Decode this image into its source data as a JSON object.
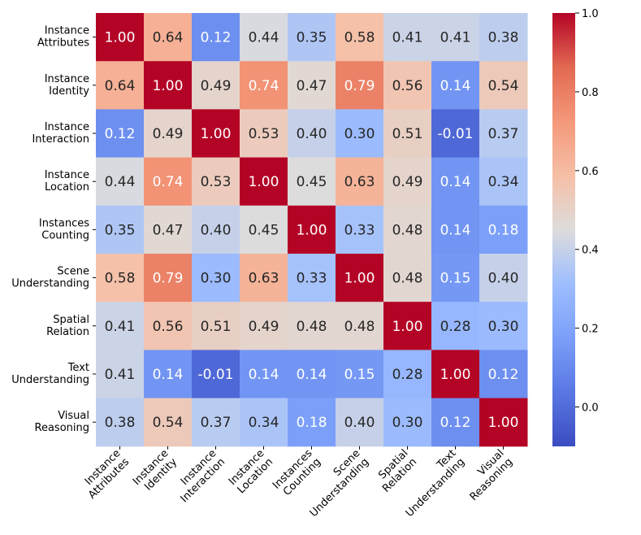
{
  "chart_data": {
    "type": "heatmap",
    "title": "",
    "xlabel": "",
    "ylabel": "",
    "row_labels": [
      [
        "Instance",
        "Attributes"
      ],
      [
        "Instance",
        "Identity"
      ],
      [
        "Instance",
        "Interaction"
      ],
      [
        "Instance",
        "Location"
      ],
      [
        "Instances",
        "Counting"
      ],
      [
        "Scene",
        "Understanding"
      ],
      [
        "Spatial",
        "Relation"
      ],
      [
        "Text",
        "Understanding"
      ],
      [
        "Visual",
        "Reasoning"
      ]
    ],
    "col_labels": [
      [
        "Instance",
        "Attributes"
      ],
      [
        "Instance",
        "Identity"
      ],
      [
        "Instance",
        "Interaction"
      ],
      [
        "Instance",
        "Location"
      ],
      [
        "Instances",
        "Counting"
      ],
      [
        "Scene",
        "Understanding"
      ],
      [
        "Spatial",
        "Relation"
      ],
      [
        "Text",
        "Understanding"
      ],
      [
        "Visual",
        "Reasoning"
      ]
    ],
    "values": [
      [
        1.0,
        0.64,
        0.12,
        0.44,
        0.35,
        0.58,
        0.41,
        0.41,
        0.38
      ],
      [
        0.64,
        1.0,
        0.49,
        0.74,
        0.47,
        0.79,
        0.56,
        0.14,
        0.54
      ],
      [
        0.12,
        0.49,
        1.0,
        0.53,
        0.4,
        0.3,
        0.51,
        -0.01,
        0.37
      ],
      [
        0.44,
        0.74,
        0.53,
        1.0,
        0.45,
        0.63,
        0.49,
        0.14,
        0.34
      ],
      [
        0.35,
        0.47,
        0.4,
        0.45,
        1.0,
        0.33,
        0.48,
        0.14,
        0.18
      ],
      [
        0.58,
        0.79,
        0.3,
        0.63,
        0.33,
        1.0,
        0.48,
        0.15,
        0.4
      ],
      [
        0.41,
        0.56,
        0.51,
        0.49,
        0.48,
        0.48,
        1.0,
        0.28,
        0.3
      ],
      [
        0.41,
        0.14,
        -0.01,
        0.14,
        0.14,
        0.15,
        0.28,
        1.0,
        0.12
      ],
      [
        0.38,
        0.54,
        0.37,
        0.34,
        0.18,
        0.4,
        0.3,
        0.12,
        1.0
      ]
    ],
    "value_labels": [
      [
        "1.00",
        "0.64",
        "0.12",
        "0.44",
        "0.35",
        "0.58",
        "0.41",
        "0.41",
        "0.38"
      ],
      [
        "0.64",
        "1.00",
        "0.49",
        "0.74",
        "0.47",
        "0.79",
        "0.56",
        "0.14",
        "0.54"
      ],
      [
        "0.12",
        "0.49",
        "1.00",
        "0.53",
        "0.40",
        "0.30",
        "0.51",
        "-0.01",
        "0.37"
      ],
      [
        "0.44",
        "0.74",
        "0.53",
        "1.00",
        "0.45",
        "0.63",
        "0.49",
        "0.14",
        "0.34"
      ],
      [
        "0.35",
        "0.47",
        "0.40",
        "0.45",
        "1.00",
        "0.33",
        "0.48",
        "0.14",
        "0.18"
      ],
      [
        "0.58",
        "0.79",
        "0.30",
        "0.63",
        "0.33",
        "1.00",
        "0.48",
        "0.15",
        "0.40"
      ],
      [
        "0.41",
        "0.56",
        "0.51",
        "0.49",
        "0.48",
        "0.48",
        "1.00",
        "0.28",
        "0.30"
      ],
      [
        "0.41",
        "0.14",
        "-0.01",
        "0.14",
        "0.14",
        "0.15",
        "0.28",
        "1.00",
        "0.12"
      ],
      [
        "0.38",
        "0.54",
        "0.37",
        "0.34",
        "0.18",
        "0.40",
        "0.30",
        "0.12",
        "1.00"
      ]
    ],
    "colormap": "coolwarm",
    "vmin": -0.1,
    "vmax": 1.0,
    "colorbar_ticks": [
      0.0,
      0.2,
      0.4,
      0.6,
      0.8,
      1.0
    ],
    "colorbar_tick_labels": [
      "0.0",
      "0.2",
      "0.4",
      "0.6",
      "0.8",
      "1.0"
    ],
    "legend": "colorbar-right"
  }
}
